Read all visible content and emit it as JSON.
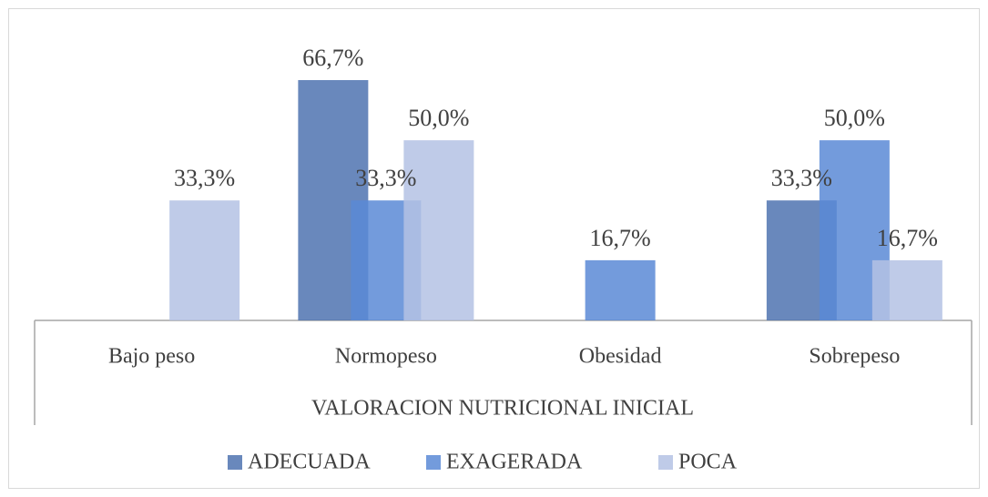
{
  "chart_data": {
    "type": "bar",
    "x_label": "VALORACION NUTRICIONAL INICIAL",
    "categories": [
      "Bajo peso",
      "Normopeso",
      "Obesidad",
      "Sobrepeso"
    ],
    "series": [
      {
        "name": "ADECUADA",
        "color": "#4f73b0",
        "values": [
          null,
          66.7,
          null,
          33.3
        ],
        "value_labels": [
          null,
          "66,7%",
          null,
          "33,3%"
        ]
      },
      {
        "name": "EXAGERADA",
        "color": "#5a8ad6",
        "values": [
          null,
          33.3,
          16.7,
          50.0
        ],
        "value_labels": [
          null,
          "33,3%",
          "16,7%",
          "50,0%"
        ]
      },
      {
        "name": "POCA",
        "color": "#b4c2e4",
        "values": [
          33.3,
          50.0,
          null,
          16.7
        ],
        "value_labels": [
          "33,3%",
          "50,0%",
          null,
          "16,7%"
        ]
      }
    ],
    "legend": "bottom"
  }
}
